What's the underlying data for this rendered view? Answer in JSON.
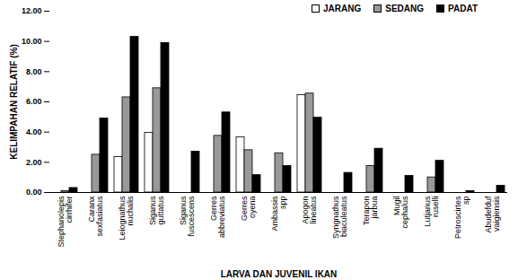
{
  "chart_data": {
    "type": "bar",
    "x_label": "LARVA DAN JUVENIL IKAN",
    "y_label": "KELIMPAHAN RELATIF (%)",
    "categories": [
      "Stephanolepis cirrhifer",
      "Caranx sexfasiatus",
      "Leiognathus nuchalis",
      "Siganus guttatus",
      "Siganus fuscescens",
      "Gerres abbreviatus",
      "Gerres oyena",
      "Ambassis spp",
      "Apogon lineatus",
      "Syngnathus biaculeatus",
      "Terapon jarbua",
      "Mugil cephalus",
      "Lutjanus ruselli",
      "Petroscirtes sp",
      "Abudefduf vaigiensis"
    ],
    "series": [
      {
        "name": "JARANG",
        "color": "#ffffff",
        "values": [
          0,
          0,
          2.35,
          3.95,
          0,
          0,
          3.65,
          0,
          6.45,
          0,
          0,
          0,
          0,
          0,
          0
        ]
      },
      {
        "name": "SEDANG",
        "color": "#999999",
        "values": [
          0.1,
          2.5,
          6.3,
          6.9,
          0,
          3.75,
          2.8,
          2.6,
          6.55,
          0,
          1.75,
          0,
          1.0,
          0,
          0
        ]
      },
      {
        "name": "PADAT",
        "color": "#000000",
        "values": [
          0.3,
          4.9,
          10.3,
          9.9,
          2.7,
          5.3,
          1.15,
          1.75,
          4.95,
          1.3,
          2.9,
          1.1,
          2.1,
          0.1,
          0.45
        ]
      }
    ],
    "ylim": [
      0,
      12
    ],
    "yticks": [
      {
        "value": 0,
        "label": "0.00"
      },
      {
        "value": 2,
        "label": "2.00"
      },
      {
        "value": 4,
        "label": "4.00"
      },
      {
        "value": 6,
        "label": "6.00"
      },
      {
        "value": 8,
        "label": "8.00"
      },
      {
        "value": 10,
        "label": "10.00"
      },
      {
        "value": 12,
        "label": "12.00"
      }
    ],
    "grid": false,
    "legend": "top-right"
  }
}
